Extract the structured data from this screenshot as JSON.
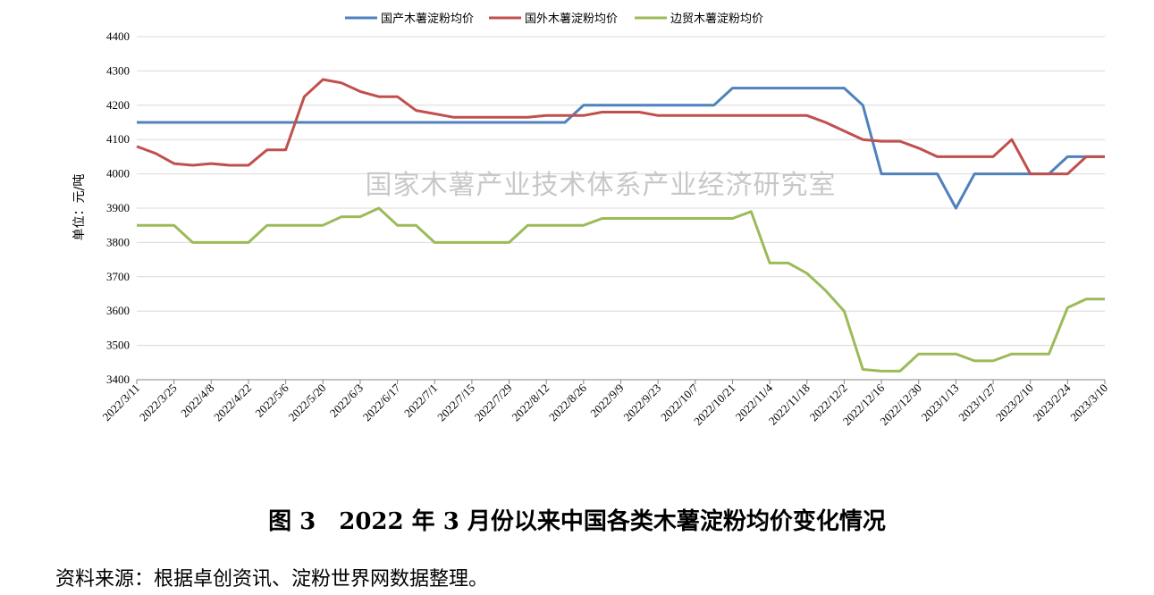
{
  "chart_data": {
    "type": "line",
    "ylabel": "单位：元/吨",
    "ylim": [
      3400,
      4400
    ],
    "yticks": [
      3400,
      3500,
      3600,
      3700,
      3800,
      3900,
      4000,
      4100,
      4200,
      4300,
      4400
    ],
    "grid": true,
    "legend_position": "top",
    "watermark": "国家木薯产业技术体系产业经济研究室",
    "xtick_labels": [
      "2022/3/11",
      "2022/3/25",
      "2022/4/8",
      "2022/4/22",
      "2022/5/6",
      "2022/5/20",
      "2022/6/3",
      "2022/6/17",
      "2022/7/1",
      "2022/7/15",
      "2022/7/29",
      "2022/8/12",
      "2022/8/26",
      "2022/9/9",
      "2022/9/23",
      "2022/10/7",
      "2022/10/21",
      "2022/11/4",
      "2022/11/18",
      "2022/12/2",
      "2022/12/16",
      "2022/12/30",
      "2023/1/13",
      "2023/1/27",
      "2023/2/10",
      "2023/2/24",
      "2023/3/10"
    ],
    "x": [
      "2022/3/11",
      "2022/3/18",
      "2022/3/25",
      "2022/4/1",
      "2022/4/8",
      "2022/4/15",
      "2022/4/22",
      "2022/4/29",
      "2022/5/6",
      "2022/5/13",
      "2022/5/20",
      "2022/5/27",
      "2022/6/3",
      "2022/6/10",
      "2022/6/17",
      "2022/6/24",
      "2022/7/1",
      "2022/7/8",
      "2022/7/15",
      "2022/7/22",
      "2022/7/29",
      "2022/8/5",
      "2022/8/12",
      "2022/8/19",
      "2022/8/26",
      "2022/9/2",
      "2022/9/9",
      "2022/9/16",
      "2022/9/23",
      "2022/9/30",
      "2022/10/7",
      "2022/10/14",
      "2022/10/21",
      "2022/10/28",
      "2022/11/4",
      "2022/11/11",
      "2022/11/18",
      "2022/11/25",
      "2022/12/2",
      "2022/12/9",
      "2022/12/16",
      "2022/12/23",
      "2022/12/30",
      "2023/1/6",
      "2023/1/13",
      "2023/1/20",
      "2023/1/27",
      "2023/2/3",
      "2023/2/10",
      "2023/2/17",
      "2023/2/24",
      "2023/3/3",
      "2023/3/10"
    ],
    "series": [
      {
        "name": "国产木薯淀粉均价",
        "color": "#4f81bd",
        "values": [
          4150,
          4150,
          4150,
          4150,
          4150,
          4150,
          4150,
          4150,
          4150,
          4150,
          4150,
          4150,
          4150,
          4150,
          4150,
          4150,
          4150,
          4150,
          4150,
          4150,
          4150,
          4150,
          4150,
          4150,
          4200,
          4200,
          4200,
          4200,
          4200,
          4200,
          4200,
          4200,
          4250,
          4250,
          4250,
          4250,
          4250,
          4250,
          4250,
          4200,
          4000,
          4000,
          4000,
          4000,
          3900,
          4000,
          4000,
          4000,
          4000,
          4000,
          4050,
          4050,
          4050
        ]
      },
      {
        "name": "国外木薯淀粉均价",
        "color": "#c0504d",
        "values": [
          4080,
          4060,
          4030,
          4025,
          4030,
          4025,
          4025,
          4070,
          4070,
          4225,
          4275,
          4265,
          4240,
          4225,
          4225,
          4185,
          4175,
          4165,
          4165,
          4165,
          4165,
          4165,
          4170,
          4170,
          4170,
          4180,
          4180,
          4180,
          4170,
          4170,
          4170,
          4170,
          4170,
          4170,
          4170,
          4170,
          4170,
          4150,
          4125,
          4100,
          4095,
          4095,
          4075,
          4050,
          4050,
          4050,
          4050,
          4100,
          4000,
          4000,
          4000,
          4050,
          4050
        ]
      },
      {
        "name": "边贸木薯淀粉均价",
        "color": "#9bbb59",
        "values": [
          3850,
          3850,
          3850,
          3800,
          3800,
          3800,
          3800,
          3850,
          3850,
          3850,
          3850,
          3875,
          3875,
          3900,
          3850,
          3850,
          3800,
          3800,
          3800,
          3800,
          3800,
          3850,
          3850,
          3850,
          3850,
          3870,
          3870,
          3870,
          3870,
          3870,
          3870,
          3870,
          3870,
          3890,
          3740,
          3740,
          3710,
          3660,
          3600,
          3430,
          3425,
          3425,
          3475,
          3475,
          3475,
          3455,
          3455,
          3475,
          3475,
          3475,
          3610,
          3635,
          3635
        ]
      }
    ]
  },
  "caption": "图 3　2022 年 3 月份以来中国各类木薯淀粉均价变化情况",
  "source": "资料来源：根据卓创资讯、淀粉世界网数据整理。"
}
